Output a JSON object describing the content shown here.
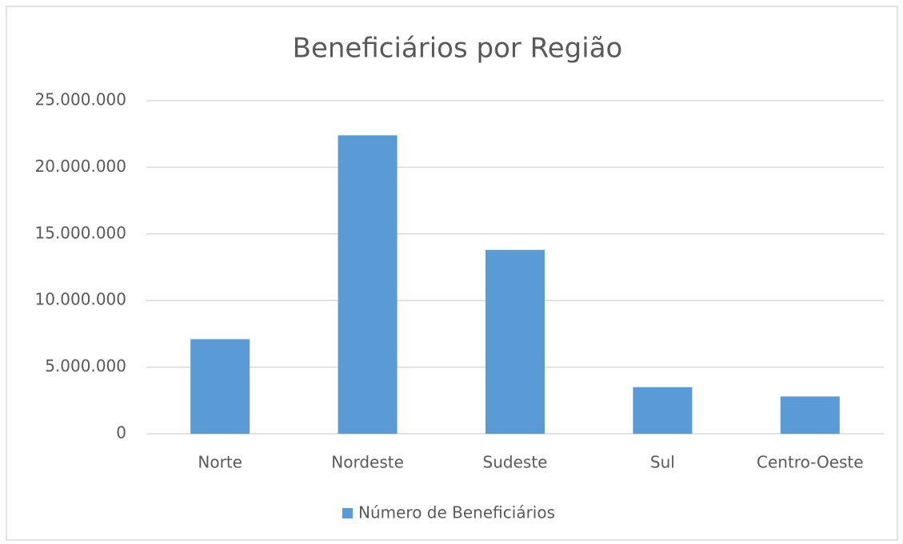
{
  "chart_data": {
    "type": "bar",
    "title": "Beneficiários por Região",
    "categories": [
      "Norte",
      "Nordeste",
      "Sudeste",
      "Sul",
      "Centro-Oeste"
    ],
    "series": [
      {
        "name": "Número de Beneficiários",
        "color": "#5b9bd5",
        "values": [
          7100000,
          22400000,
          13800000,
          3500000,
          2800000
        ]
      }
    ],
    "ylim": [
      0,
      25000000
    ],
    "yticks": [
      0,
      {
        "value": 5000000,
        "label": "5.000.000"
      },
      {
        "value": 10000000,
        "label": "10.000.000"
      },
      {
        "value": 15000000,
        "label": "15.000.000"
      },
      {
        "value": 20000000,
        "label": "20.000.000"
      },
      {
        "value": 25000000,
        "label": "25.000.000"
      }
    ],
    "grid": true,
    "legend": "bottom"
  }
}
